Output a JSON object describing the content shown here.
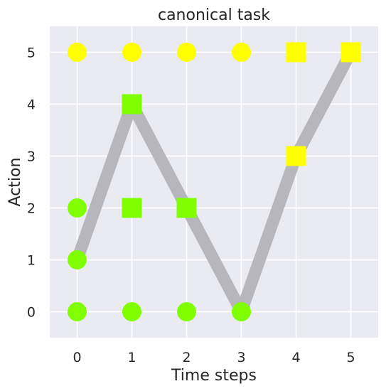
{
  "chart_data": {
    "type": "scatter",
    "title": "canonical task",
    "xlabel": "Time steps",
    "ylabel": "Action",
    "xlim": [
      -0.5,
      5.5
    ],
    "ylim": [
      -0.5,
      5.5
    ],
    "xticks": [
      "0",
      "1",
      "2",
      "3",
      "4",
      "5"
    ],
    "yticks": [
      "0",
      "1",
      "2",
      "3",
      "4",
      "5"
    ],
    "grid": true,
    "background_color": "#eaeaf2",
    "grid_color": "#ffffff",
    "path": {
      "color": "#b3b3b8",
      "points": [
        [
          0,
          1
        ],
        [
          1,
          4
        ],
        [
          2,
          2
        ],
        [
          3,
          0
        ],
        [
          4,
          3
        ],
        [
          5,
          5
        ]
      ]
    },
    "markers": [
      {
        "x": 0,
        "y": 5,
        "shape": "circle",
        "color": "#ffff00"
      },
      {
        "x": 1,
        "y": 5,
        "shape": "circle",
        "color": "#ffff00"
      },
      {
        "x": 2,
        "y": 5,
        "shape": "circle",
        "color": "#ffff00"
      },
      {
        "x": 3,
        "y": 5,
        "shape": "circle",
        "color": "#ffff00"
      },
      {
        "x": 4,
        "y": 5,
        "shape": "square",
        "color": "#ffff00"
      },
      {
        "x": 5,
        "y": 5,
        "shape": "square",
        "color": "#ffff00"
      },
      {
        "x": 4,
        "y": 3,
        "shape": "square",
        "color": "#ffff00"
      },
      {
        "x": 1,
        "y": 4,
        "shape": "square",
        "color": "#7fff00"
      },
      {
        "x": 1,
        "y": 2,
        "shape": "square",
        "color": "#7fff00"
      },
      {
        "x": 2,
        "y": 2,
        "shape": "square",
        "color": "#7fff00"
      },
      {
        "x": 0,
        "y": 2,
        "shape": "circle",
        "color": "#7fff00"
      },
      {
        "x": 0,
        "y": 1,
        "shape": "circle",
        "color": "#7fff00"
      },
      {
        "x": 0,
        "y": 0,
        "shape": "circle",
        "color": "#7fff00"
      },
      {
        "x": 1,
        "y": 0,
        "shape": "circle",
        "color": "#7fff00"
      },
      {
        "x": 2,
        "y": 0,
        "shape": "circle",
        "color": "#7fff00"
      },
      {
        "x": 3,
        "y": 0,
        "shape": "circle",
        "color": "#7fff00"
      }
    ]
  }
}
